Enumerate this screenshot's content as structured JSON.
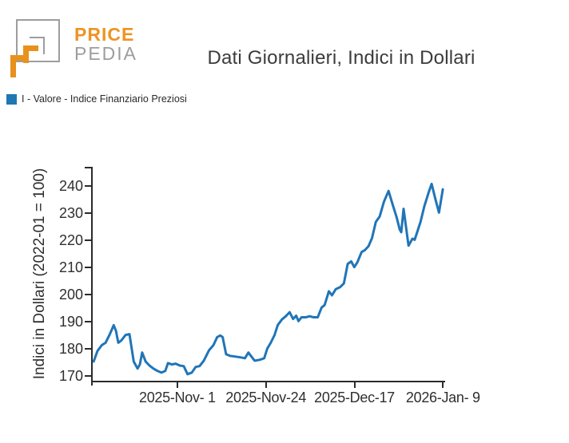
{
  "header": {
    "logo": {
      "word1": "PRICE",
      "word2": "PEDIA"
    },
    "title": "Dati Giornalieri, Indici in Dollari"
  },
  "legend": {
    "label": "I - Valore - Indice Finanziario Preziosi",
    "swatch_color": "#1f77b4"
  },
  "colors": {
    "line_blue": "#2075b8",
    "logo_orange": "#e8911d",
    "logo_gray": "#9d9d9d",
    "axis_dark": "#2b2b2b",
    "text_dark": "#2f2f2f"
  },
  "chart_data": {
    "type": "line",
    "title": "Dati Giornalieri, Indici in Dollari",
    "xlabel": "",
    "ylabel": "Indici in Dollari (2022-01 = 100)",
    "grid": false,
    "legend_position": "top-left above plot",
    "x_unit": "days, daily index observations (0 = ~2025-Oct-10)",
    "xlim": [
      -0.25,
      91.3
    ],
    "ylim": [
      168.2,
      247.1
    ],
    "y_ticks": [
      170,
      180,
      190,
      200,
      210,
      220,
      230,
      240
    ],
    "x_ticks": [
      {
        "pos": 21.74,
        "label": "2025-Nov- 1"
      },
      {
        "pos": 44.74,
        "label": "2025-Nov-24"
      },
      {
        "pos": 67.74,
        "label": "2025-Dec-17"
      },
      {
        "pos": 90.74,
        "label": "2026-Jan- 9"
      }
    ],
    "series": [
      {
        "name": "I - Valore - Indice Finanziario Preziosi",
        "color": "#2075b8",
        "points": [
          [
            0.0,
            175.3
          ],
          [
            1.0,
            179.2
          ],
          [
            2.1,
            181.3
          ],
          [
            3.1,
            182.2
          ],
          [
            4.1,
            185.1
          ],
          [
            5.2,
            188.7
          ],
          [
            5.8,
            186.6
          ],
          [
            6.4,
            182.2
          ],
          [
            7.2,
            183.1
          ],
          [
            8.3,
            185.1
          ],
          [
            9.3,
            185.4
          ],
          [
            10.4,
            175.3
          ],
          [
            11.4,
            172.7
          ],
          [
            12.0,
            174.2
          ],
          [
            12.6,
            178.6
          ],
          [
            13.5,
            175.3
          ],
          [
            14.5,
            173.8
          ],
          [
            15.5,
            172.7
          ],
          [
            16.6,
            171.8
          ],
          [
            17.6,
            171.2
          ],
          [
            18.6,
            171.8
          ],
          [
            19.3,
            174.7
          ],
          [
            20.3,
            174.2
          ],
          [
            21.3,
            174.5
          ],
          [
            22.4,
            173.8
          ],
          [
            23.4,
            173.6
          ],
          [
            24.4,
            170.6
          ],
          [
            25.5,
            171.2
          ],
          [
            26.5,
            173.3
          ],
          [
            27.5,
            173.6
          ],
          [
            28.6,
            175.6
          ],
          [
            30.0,
            179.5
          ],
          [
            31.1,
            181.3
          ],
          [
            32.1,
            184.3
          ],
          [
            32.9,
            184.9
          ],
          [
            33.5,
            184.3
          ],
          [
            34.4,
            178.0
          ],
          [
            35.4,
            177.4
          ],
          [
            36.9,
            177.1
          ],
          [
            38.3,
            176.8
          ],
          [
            39.3,
            176.5
          ],
          [
            40.2,
            178.6
          ],
          [
            41.0,
            177.1
          ],
          [
            41.8,
            175.6
          ],
          [
            43.1,
            175.9
          ],
          [
            44.3,
            176.5
          ],
          [
            45.1,
            180.1
          ],
          [
            46.0,
            182.2
          ],
          [
            47.0,
            185.1
          ],
          [
            47.8,
            188.7
          ],
          [
            48.9,
            190.8
          ],
          [
            49.9,
            192.0
          ],
          [
            50.9,
            193.5
          ],
          [
            51.8,
            191.0
          ],
          [
            52.6,
            192.2
          ],
          [
            53.2,
            190.2
          ],
          [
            54.0,
            191.6
          ],
          [
            55.1,
            191.6
          ],
          [
            56.1,
            192.0
          ],
          [
            57.1,
            191.6
          ],
          [
            58.2,
            191.6
          ],
          [
            59.2,
            195.2
          ],
          [
            60.0,
            196.1
          ],
          [
            61.1,
            201.2
          ],
          [
            61.9,
            199.7
          ],
          [
            62.9,
            202.0
          ],
          [
            64.0,
            202.7
          ],
          [
            65.0,
            204.1
          ],
          [
            66.0,
            211.3
          ],
          [
            66.9,
            212.2
          ],
          [
            67.7,
            210.1
          ],
          [
            68.5,
            211.9
          ],
          [
            69.6,
            215.7
          ],
          [
            70.4,
            216.3
          ],
          [
            71.4,
            217.8
          ],
          [
            72.3,
            220.8
          ],
          [
            73.3,
            226.8
          ],
          [
            74.3,
            228.8
          ],
          [
            75.4,
            234.2
          ],
          [
            76.6,
            238.2
          ],
          [
            77.6,
            233.5
          ],
          [
            78.7,
            228.5
          ],
          [
            79.5,
            224.0
          ],
          [
            79.9,
            223.0
          ],
          [
            80.5,
            231.6
          ],
          [
            81.8,
            218.0
          ],
          [
            82.8,
            220.6
          ],
          [
            83.4,
            220.2
          ],
          [
            84.9,
            226.8
          ],
          [
            85.9,
            232.6
          ],
          [
            87.0,
            237.6
          ],
          [
            87.8,
            240.8
          ],
          [
            88.8,
            235.0
          ],
          [
            89.7,
            230.2
          ],
          [
            90.7,
            238.8
          ]
        ]
      }
    ]
  }
}
